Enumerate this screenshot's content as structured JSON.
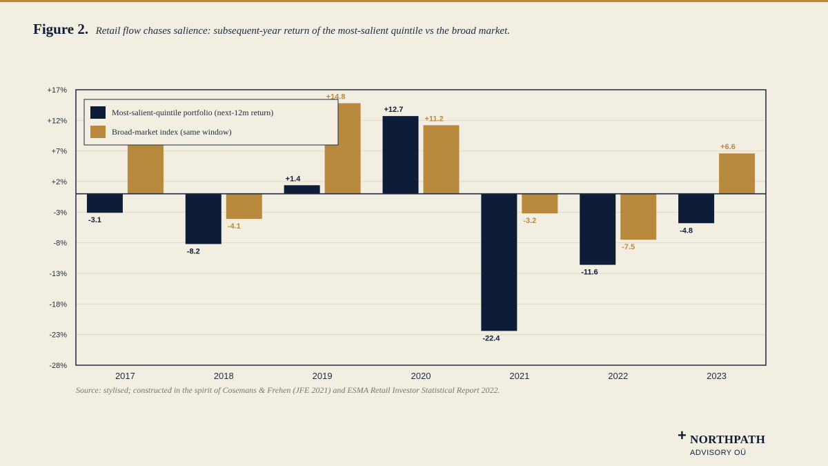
{
  "figure": {
    "label": "Figure 2.",
    "caption": "Retail flow chases salience: subsequent-year return of the most-salient quintile vs the broad market."
  },
  "source": "Source: stylised; constructed in the spirit of Cosemans & Frehen (JFE 2021) and ESMA Retail Investor Statistical Report 2022.",
  "brand": {
    "mark": "+",
    "name": "NORTHPATH",
    "sub": "ADVISORY OÜ"
  },
  "colors": {
    "primary": "#0d1d38",
    "accent": "#b9893d",
    "background": "#f3eee2"
  },
  "chart_data": {
    "type": "bar",
    "categories": [
      "2017",
      "2018",
      "2019",
      "2020",
      "2021",
      "2022",
      "2023"
    ],
    "series": [
      {
        "name": "Most-salient-quintile portfolio (next-12m return)",
        "values": [
          -3.1,
          -8.2,
          1.4,
          12.7,
          -22.4,
          -11.6,
          -4.8
        ],
        "labels": [
          "-3.1",
          "-8.2",
          "+1.4",
          "+12.7",
          "-22.4",
          "-11.6",
          "-4.8"
        ],
        "color": "#0d1d38"
      },
      {
        "name": "Broad-market index (same window)",
        "values": [
          10.5,
          -4.1,
          14.8,
          11.2,
          -3.2,
          -7.5,
          6.6
        ],
        "labels": [
          "+10.5",
          "-4.1",
          "+14.8",
          "+11.2",
          "-3.2",
          "-7.5",
          "+6.6"
        ],
        "color": "#b9893d"
      }
    ],
    "ylim": [
      -28,
      17
    ],
    "yticks": [
      17,
      12,
      7,
      2,
      -3,
      -8,
      -13,
      -18,
      -23,
      -28
    ],
    "ytick_labels": [
      "+17%",
      "+12%",
      "+7%",
      "+2%",
      "-3%",
      "-8%",
      "-13%",
      "-18%",
      "-23%",
      "-28%"
    ],
    "grid": true,
    "legend": "top-left"
  }
}
